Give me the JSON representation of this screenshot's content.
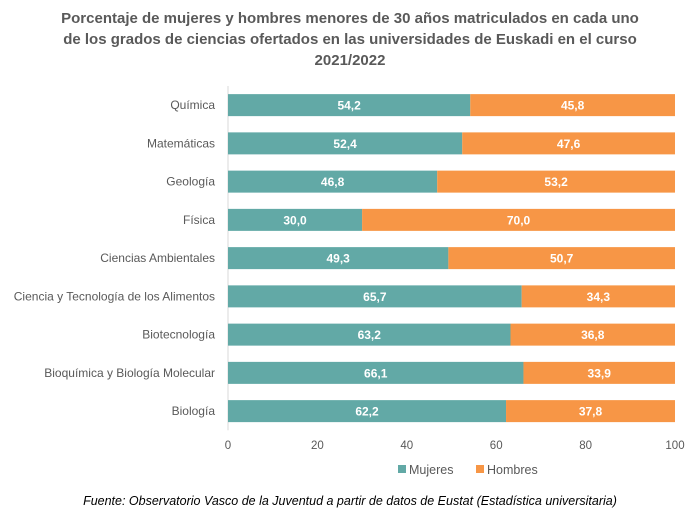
{
  "chart_data": {
    "type": "bar",
    "orientation": "horizontal",
    "stacked": true,
    "title_lines": [
      "Porcentaje de mujeres y hombres menores de 30 años matriculados en cada uno",
      "de los grados de ciencias ofertados en las universidades de Euskadi en el curso",
      "2021/2022"
    ],
    "categories": [
      "Química",
      "Matemáticas",
      "Geología",
      "Física",
      "Ciencias Ambientales",
      "Ciencia y Tecnología de los Alimentos",
      "Biotecnología",
      "Bioquímica y Biología Molecular",
      "Biología"
    ],
    "series": [
      {
        "name": "Mujeres",
        "color": "#62a9a6",
        "values": [
          54.2,
          52.4,
          46.8,
          30.0,
          49.3,
          65.7,
          63.2,
          66.1,
          62.2
        ],
        "labels": [
          "54,2",
          "52,4",
          "46,8",
          "30,0",
          "49,3",
          "65,7",
          "63,2",
          "66,1",
          "62,2"
        ]
      },
      {
        "name": "Hombres",
        "color": "#f79646",
        "values": [
          45.8,
          47.6,
          53.2,
          70.0,
          50.7,
          34.3,
          36.8,
          33.9,
          37.8
        ],
        "labels": [
          "45,8",
          "47,6",
          "53,2",
          "70,0",
          "50,7",
          "34,3",
          "36,8",
          "33,9",
          "37,8"
        ]
      }
    ],
    "xlim": [
      0,
      100
    ],
    "xticks": [
      "0",
      "20",
      "40",
      "60",
      "80",
      "100"
    ],
    "grid": false,
    "legend_position": "bottom"
  },
  "source": "Fuente: Observatorio Vasco de la Juventud a partir de datos de Eustat (Estadística universitaria)"
}
